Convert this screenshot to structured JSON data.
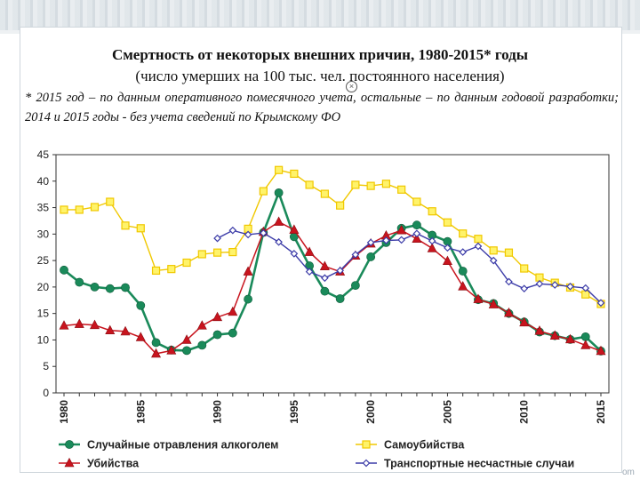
{
  "title": "Смертность от некоторых внешних причин, 1980-2015* годы",
  "subtitle": "(число умерших на 100 тыс. чел. постоянного населения)",
  "note": "* 2015 год – по данным оперативного помесячного учета, остальные – по данным годовой разработки; 2014 и 2015 годы - без учета сведений по Крымскому ФО",
  "watermark": "om",
  "icons": {
    "close": "close-circle-icon"
  },
  "chart_data": {
    "type": "line",
    "x": [
      1980,
      1981,
      1982,
      1983,
      1984,
      1985,
      1986,
      1987,
      1988,
      1989,
      1990,
      1991,
      1992,
      1993,
      1994,
      1995,
      1996,
      1997,
      1998,
      1999,
      2000,
      2001,
      2002,
      2003,
      2004,
      2005,
      2006,
      2007,
      2008,
      2009,
      2010,
      2011,
      2012,
      2013,
      2014,
      2015
    ],
    "x_tick_labels": [
      "1980",
      "1985",
      "1990",
      "1995",
      "2000",
      "2005",
      "2010",
      "2015"
    ],
    "y_tick_labels": [
      "0",
      "5",
      "10",
      "15",
      "20",
      "25",
      "30",
      "35",
      "40",
      "45"
    ],
    "ylim": [
      0,
      45
    ],
    "xlim": [
      1980,
      2015
    ],
    "grid": false,
    "legend_position": "bottom",
    "series": [
      {
        "name": "Случайные отравления алкоголем",
        "color": "#1a8a5a",
        "marker": "circle",
        "values": [
          23.2,
          20.9,
          20.0,
          19.7,
          19.9,
          16.5,
          9.5,
          8.1,
          8.0,
          9.0,
          11.0,
          11.3,
          17.7,
          30.3,
          37.8,
          29.5,
          24.0,
          19.2,
          17.8,
          20.3,
          25.7,
          28.4,
          31.1,
          31.7,
          29.8,
          28.6,
          23.0,
          17.6,
          16.9,
          15.0,
          13.4,
          11.5,
          10.8,
          10.1,
          10.6,
          7.9
        ]
      },
      {
        "name": "Самоубийства",
        "color": "#f0c800",
        "marker": "square",
        "values": [
          34.6,
          34.6,
          35.1,
          36.1,
          31.6,
          31.1,
          23.1,
          23.4,
          24.6,
          26.2,
          26.5,
          26.6,
          31.0,
          38.1,
          42.1,
          41.4,
          39.3,
          37.6,
          35.4,
          39.3,
          39.1,
          39.5,
          38.4,
          36.1,
          34.3,
          32.2,
          30.1,
          29.1,
          26.9,
          26.5,
          23.5,
          21.8,
          20.8,
          19.9,
          18.6,
          16.8
        ]
      },
      {
        "name": "Убийства",
        "color": "#c8141e",
        "marker": "triangle",
        "values": [
          12.7,
          13.0,
          12.8,
          11.8,
          11.6,
          10.5,
          7.4,
          8.0,
          10.0,
          12.7,
          14.3,
          15.3,
          22.9,
          30.4,
          32.3,
          30.8,
          26.6,
          23.9,
          22.9,
          25.9,
          28.2,
          29.7,
          30.7,
          29.1,
          27.3,
          24.9,
          20.1,
          17.7,
          16.7,
          15.1,
          13.3,
          11.7,
          10.8,
          10.1,
          9.0,
          7.9
        ]
      },
      {
        "name": "Транспортные несчастные случаи",
        "color": "#3c3ca8",
        "marker": "diamond",
        "values": [
          null,
          null,
          null,
          null,
          null,
          null,
          null,
          null,
          null,
          null,
          29.2,
          30.7,
          29.9,
          30.2,
          28.5,
          26.3,
          22.9,
          21.7,
          23.1,
          26.1,
          28.4,
          28.8,
          28.9,
          30.1,
          28.7,
          27.4,
          26.6,
          27.7,
          25.0,
          21.0,
          19.7,
          20.6,
          20.4,
          20.1,
          19.8,
          17.0
        ]
      }
    ]
  }
}
